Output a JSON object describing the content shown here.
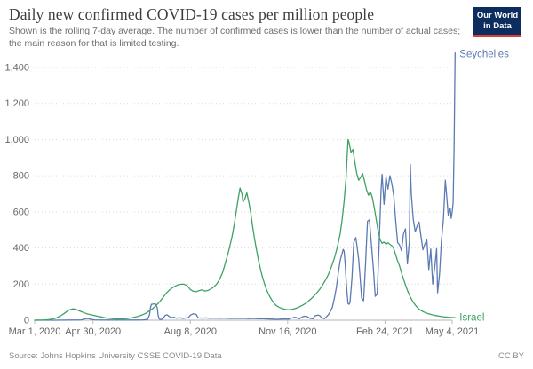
{
  "header": {
    "title": "Daily new confirmed COVID-19 cases per million people",
    "subtitle": "Shown is the rolling 7-day average. The number of confirmed cases is lower than the number of actual cases; the main reason for that is limited testing.",
    "logo": {
      "line1": "Our World",
      "line2": "in Data",
      "bg_color": "#0d2d5e",
      "accent_color": "#dc3e32"
    }
  },
  "footer": {
    "source": "Source: Johns Hopkins University CSSE COVID-19 Data",
    "license": "CC BY"
  },
  "colors": {
    "axis_text": "#666666",
    "gridline": "#d9d9d9",
    "zero_line": "#b3b3b3",
    "tick_mark": "#bbbbbb"
  },
  "chart_data": {
    "type": "line",
    "title": "Daily new confirmed COVID-19 cases per million people",
    "subtitle": "Shown is the rolling 7-day average.",
    "legend_position": "end-of-line labels",
    "grid": "dotted horizontal",
    "x_axis": {
      "kind": "date",
      "tick_labels": [
        "Mar 1, 2020",
        "Apr 30, 2020",
        "Aug 8, 2020",
        "Nov 16, 2020",
        "Feb 24, 2021",
        "May 4, 2021"
      ],
      "tick_day_offsets": [
        0,
        60,
        160,
        260,
        360,
        429
      ],
      "range_day_offsets": [
        0,
        432
      ]
    },
    "y_axis": {
      "label": "",
      "ticks": [
        0,
        200,
        400,
        600,
        800,
        1000,
        1200,
        1400
      ],
      "ylim": [
        0,
        1480
      ]
    },
    "series": [
      {
        "name": "Seychelles",
        "color": "#5b7ab2",
        "points": [
          [
            0,
            0
          ],
          [
            20,
            0
          ],
          [
            36,
            1
          ],
          [
            44,
            1
          ],
          [
            48,
            2
          ],
          [
            52,
            8
          ],
          [
            55,
            10
          ],
          [
            58,
            5
          ],
          [
            62,
            2
          ],
          [
            72,
            1
          ],
          [
            84,
            1
          ],
          [
            96,
            1
          ],
          [
            106,
            1
          ],
          [
            112,
            2
          ],
          [
            116,
            4
          ],
          [
            118,
            30
          ],
          [
            119,
            70
          ],
          [
            120,
            88
          ],
          [
            124,
            91
          ],
          [
            126,
            70
          ],
          [
            127,
            25
          ],
          [
            128,
            7
          ],
          [
            130,
            4
          ],
          [
            132,
            10
          ],
          [
            134,
            26
          ],
          [
            136,
            30
          ],
          [
            138,
            22
          ],
          [
            140,
            14
          ],
          [
            143,
            16
          ],
          [
            146,
            11
          ],
          [
            149,
            14
          ],
          [
            152,
            10
          ],
          [
            155,
            12
          ],
          [
            158,
            14
          ],
          [
            160,
            28
          ],
          [
            163,
            36
          ],
          [
            166,
            32
          ],
          [
            168,
            13
          ],
          [
            172,
            12
          ],
          [
            176,
            13
          ],
          [
            180,
            11
          ],
          [
            185,
            12
          ],
          [
            190,
            11
          ],
          [
            195,
            12
          ],
          [
            200,
            10
          ],
          [
            205,
            11
          ],
          [
            210,
            10
          ],
          [
            215,
            11
          ],
          [
            220,
            9
          ],
          [
            225,
            10
          ],
          [
            230,
            8
          ],
          [
            235,
            8
          ],
          [
            240,
            7
          ],
          [
            245,
            6
          ],
          [
            249,
            5
          ],
          [
            253,
            6
          ],
          [
            257,
            7
          ],
          [
            261,
            6
          ],
          [
            264,
            12
          ],
          [
            267,
            16
          ],
          [
            269,
            14
          ],
          [
            272,
            8
          ],
          [
            275,
            18
          ],
          [
            277,
            22
          ],
          [
            280,
            20
          ],
          [
            283,
            10
          ],
          [
            286,
            8
          ],
          [
            288,
            24
          ],
          [
            291,
            28
          ],
          [
            293,
            25
          ],
          [
            295,
            12
          ],
          [
            298,
            9
          ],
          [
            300,
            20
          ],
          [
            302,
            32
          ],
          [
            304,
            50
          ],
          [
            306,
            72
          ],
          [
            308,
            122
          ],
          [
            310,
            180
          ],
          [
            312,
            262
          ],
          [
            314,
            332
          ],
          [
            316,
            372
          ],
          [
            317,
            392
          ],
          [
            318,
            382
          ],
          [
            319,
            316
          ],
          [
            320,
            225
          ],
          [
            321,
            148
          ],
          [
            322,
            92
          ],
          [
            323,
            88
          ],
          [
            324,
            98
          ],
          [
            326,
            234
          ],
          [
            328,
            432
          ],
          [
            330,
            458
          ],
          [
            331,
            420
          ],
          [
            333,
            336
          ],
          [
            335,
            196
          ],
          [
            336,
            122
          ],
          [
            338,
            108
          ],
          [
            340,
            314
          ],
          [
            342,
            548
          ],
          [
            344,
            556
          ],
          [
            346,
            418
          ],
          [
            348,
            288
          ],
          [
            350,
            132
          ],
          [
            352,
            144
          ],
          [
            354,
            424
          ],
          [
            356,
            724
          ],
          [
            357,
            808
          ],
          [
            359,
            642
          ],
          [
            361,
            794
          ],
          [
            363,
            726
          ],
          [
            365,
            800
          ],
          [
            367,
            756
          ],
          [
            369,
            686
          ],
          [
            371,
            546
          ],
          [
            373,
            430
          ],
          [
            375,
            416
          ],
          [
            377,
            384
          ],
          [
            379,
            478
          ],
          [
            381,
            506
          ],
          [
            383,
            312
          ],
          [
            385,
            434
          ],
          [
            386,
            862
          ],
          [
            387,
            700
          ],
          [
            389,
            560
          ],
          [
            391,
            490
          ],
          [
            393,
            522
          ],
          [
            395,
            544
          ],
          [
            397,
            464
          ],
          [
            399,
            390
          ],
          [
            401,
            422
          ],
          [
            403,
            444
          ],
          [
            405,
            280
          ],
          [
            407,
            394
          ],
          [
            409,
            200
          ],
          [
            411,
            290
          ],
          [
            413,
            396
          ],
          [
            414,
            152
          ],
          [
            416,
            256
          ],
          [
            418,
            440
          ],
          [
            420,
            556
          ],
          [
            422,
            775
          ],
          [
            423,
            714
          ],
          [
            425,
            580
          ],
          [
            427,
            618
          ],
          [
            428,
            564
          ],
          [
            429,
            600
          ],
          [
            430,
            652
          ],
          [
            431,
            965
          ],
          [
            432,
            1480
          ]
        ]
      },
      {
        "name": "Israel",
        "color": "#3fa164",
        "points": [
          [
            0,
            0
          ],
          [
            8,
            1
          ],
          [
            14,
            3
          ],
          [
            18,
            6
          ],
          [
            22,
            12
          ],
          [
            26,
            22
          ],
          [
            30,
            36
          ],
          [
            33,
            48
          ],
          [
            36,
            58
          ],
          [
            39,
            63
          ],
          [
            42,
            61
          ],
          [
            45,
            54
          ],
          [
            48,
            47
          ],
          [
            51,
            41
          ],
          [
            54,
            35
          ],
          [
            58,
            30
          ],
          [
            62,
            25
          ],
          [
            66,
            20
          ],
          [
            70,
            16
          ],
          [
            74,
            12
          ],
          [
            78,
            10
          ],
          [
            82,
            8
          ],
          [
            86,
            7
          ],
          [
            90,
            7
          ],
          [
            94,
            9
          ],
          [
            98,
            12
          ],
          [
            102,
            16
          ],
          [
            106,
            21
          ],
          [
            110,
            28
          ],
          [
            114,
            38
          ],
          [
            118,
            52
          ],
          [
            122,
            68
          ],
          [
            126,
            88
          ],
          [
            129,
            106
          ],
          [
            132,
            126
          ],
          [
            135,
            148
          ],
          [
            138,
            165
          ],
          [
            141,
            178
          ],
          [
            144,
            188
          ],
          [
            147,
            195
          ],
          [
            150,
            199
          ],
          [
            153,
            200
          ],
          [
            156,
            194
          ],
          [
            158,
            183
          ],
          [
            160,
            170
          ],
          [
            163,
            160
          ],
          [
            166,
            158
          ],
          [
            169,
            164
          ],
          [
            172,
            168
          ],
          [
            175,
            161
          ],
          [
            178,
            165
          ],
          [
            181,
            173
          ],
          [
            184,
            184
          ],
          [
            187,
            200
          ],
          [
            190,
            226
          ],
          [
            193,
            262
          ],
          [
            195,
            298
          ],
          [
            197,
            336
          ],
          [
            199,
            376
          ],
          [
            201,
            420
          ],
          [
            203,
            468
          ],
          [
            205,
            528
          ],
          [
            207,
            598
          ],
          [
            209,
            670
          ],
          [
            211,
            732
          ],
          [
            213,
            698
          ],
          [
            214,
            655
          ],
          [
            216,
            672
          ],
          [
            218,
            705
          ],
          [
            220,
            656
          ],
          [
            222,
            596
          ],
          [
            224,
            518
          ],
          [
            226,
            448
          ],
          [
            228,
            388
          ],
          [
            230,
            330
          ],
          [
            232,
            283
          ],
          [
            234,
            240
          ],
          [
            236,
            204
          ],
          [
            238,
            174
          ],
          [
            240,
            148
          ],
          [
            242,
            127
          ],
          [
            244,
            109
          ],
          [
            246,
            94
          ],
          [
            248,
            82
          ],
          [
            251,
            72
          ],
          [
            254,
            65
          ],
          [
            257,
            61
          ],
          [
            260,
            58
          ],
          [
            263,
            59
          ],
          [
            266,
            62
          ],
          [
            269,
            67
          ],
          [
            272,
            74
          ],
          [
            275,
            82
          ],
          [
            278,
            92
          ],
          [
            281,
            104
          ],
          [
            284,
            118
          ],
          [
            287,
            134
          ],
          [
            290,
            152
          ],
          [
            293,
            172
          ],
          [
            296,
            196
          ],
          [
            299,
            224
          ],
          [
            302,
            256
          ],
          [
            305,
            296
          ],
          [
            308,
            344
          ],
          [
            311,
            404
          ],
          [
            314,
            480
          ],
          [
            316,
            560
          ],
          [
            318,
            660
          ],
          [
            320,
            790
          ],
          [
            321,
            900
          ],
          [
            322,
            1000
          ],
          [
            323,
            985
          ],
          [
            325,
            930
          ],
          [
            327,
            945
          ],
          [
            329,
            878
          ],
          [
            331,
            812
          ],
          [
            333,
            775
          ],
          [
            335,
            792
          ],
          [
            337,
            812
          ],
          [
            339,
            770
          ],
          [
            341,
            722
          ],
          [
            343,
            692
          ],
          [
            345,
            710
          ],
          [
            347,
            678
          ],
          [
            349,
            620
          ],
          [
            351,
            558
          ],
          [
            353,
            492
          ],
          [
            355,
            445
          ],
          [
            357,
            426
          ],
          [
            359,
            433
          ],
          [
            361,
            421
          ],
          [
            363,
            429
          ],
          [
            365,
            420
          ],
          [
            367,
            412
          ],
          [
            369,
            396
          ],
          [
            371,
            360
          ],
          [
            373,
            328
          ],
          [
            375,
            300
          ],
          [
            377,
            262
          ],
          [
            379,
            228
          ],
          [
            381,
            196
          ],
          [
            383,
            166
          ],
          [
            385,
            140
          ],
          [
            387,
            118
          ],
          [
            389,
            99
          ],
          [
            391,
            84
          ],
          [
            394,
            66
          ],
          [
            397,
            54
          ],
          [
            400,
            45
          ],
          [
            404,
            37
          ],
          [
            408,
            31
          ],
          [
            412,
            26
          ],
          [
            416,
            22
          ],
          [
            420,
            19
          ],
          [
            424,
            17
          ],
          [
            428,
            15
          ],
          [
            432,
            14
          ]
        ]
      }
    ]
  }
}
